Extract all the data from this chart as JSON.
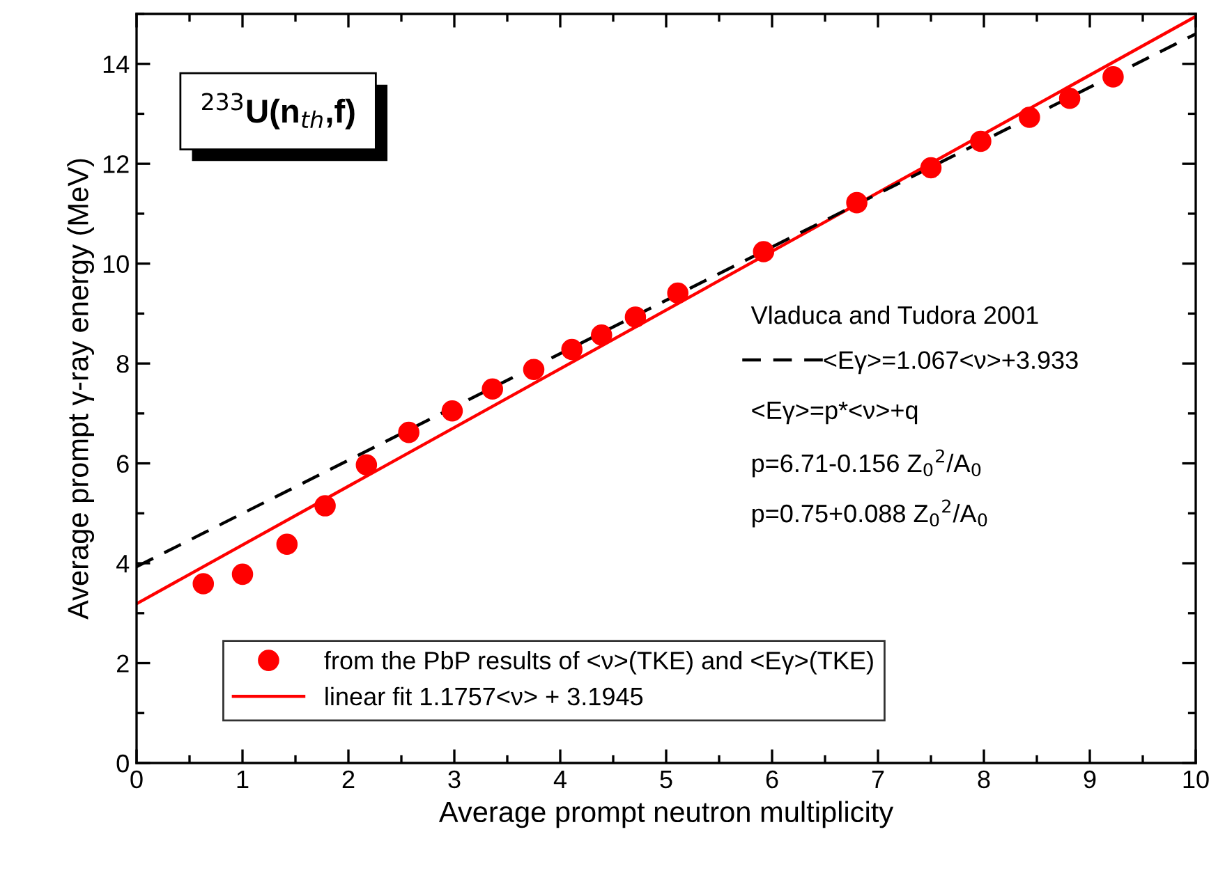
{
  "chart_data": {
    "type": "scatter",
    "title": "$^{233}$U(n$_{th}$,f)",
    "xlabel": "Average prompt neutron multiplicity",
    "ylabel": "Average prompt γ-ray energy (MeV)",
    "xlim": [
      0,
      10
    ],
    "ylim": [
      0,
      15
    ],
    "xticks": [
      0,
      1,
      2,
      3,
      4,
      5,
      6,
      7,
      8,
      9,
      10
    ],
    "yticks": [
      0,
      2,
      4,
      6,
      8,
      10,
      12,
      14
    ],
    "grid": false,
    "legend": "bottom",
    "series": [
      {
        "name": "from the PbP results of <ν>(TKE) and <Eγ>(TKE)",
        "color": "#ff0000",
        "marker": "circle",
        "x": [
          0.63,
          1.0,
          1.42,
          1.78,
          2.17,
          2.57,
          2.98,
          3.36,
          3.75,
          4.11,
          4.39,
          4.71,
          5.11,
          5.92,
          6.8,
          7.5,
          7.97,
          8.43,
          8.81,
          9.22
        ],
        "values": [
          3.59,
          3.78,
          4.38,
          5.15,
          5.97,
          6.62,
          7.05,
          7.49,
          7.88,
          8.28,
          8.57,
          8.93,
          9.41,
          10.24,
          11.22,
          11.92,
          12.45,
          12.93,
          13.31,
          13.74
        ]
      },
      {
        "name": "linear fit 1.1757<ν> + 3.1945",
        "type": "line",
        "color": "#ff0000",
        "line_style": "solid",
        "x": [
          0,
          10
        ],
        "values": [
          3.19,
          14.95
        ]
      },
      {
        "name": "<Eγ>=1.067<ν>+3.933",
        "type": "line",
        "color": "#000000",
        "line_style": "dashed",
        "x": [
          0,
          10
        ],
        "values": [
          3.93,
          14.6
        ]
      }
    ],
    "annotations": [
      "Vladuca and Tudora 2001",
      "<Eγ>=p*<ν>+q",
      "p=6.71-0.156 Z$_{0}$$^{2}$/A$_{0}$",
      "p=0.75+0.088 Z$_{0}$$^{2}$/A$_{0}$"
    ]
  }
}
